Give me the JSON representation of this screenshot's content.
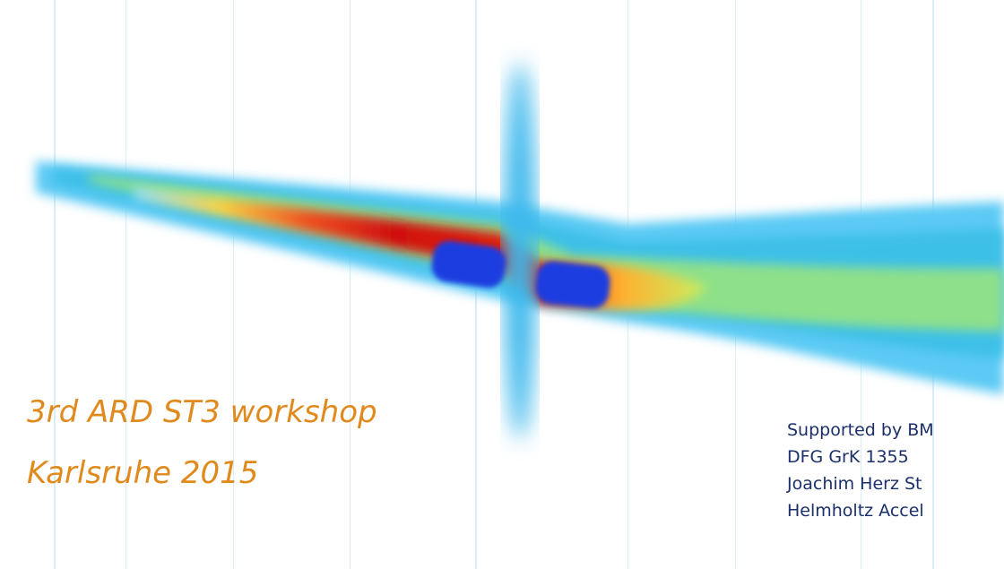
{
  "slide": {
    "event": [
      "3rd ARD ST3 workshop",
      "Karlsruhe 2015"
    ],
    "support": [
      "Supported by BM",
      "DFG GrK 1355",
      "Joachim Herz St",
      "Helmholtz Accel"
    ]
  }
}
